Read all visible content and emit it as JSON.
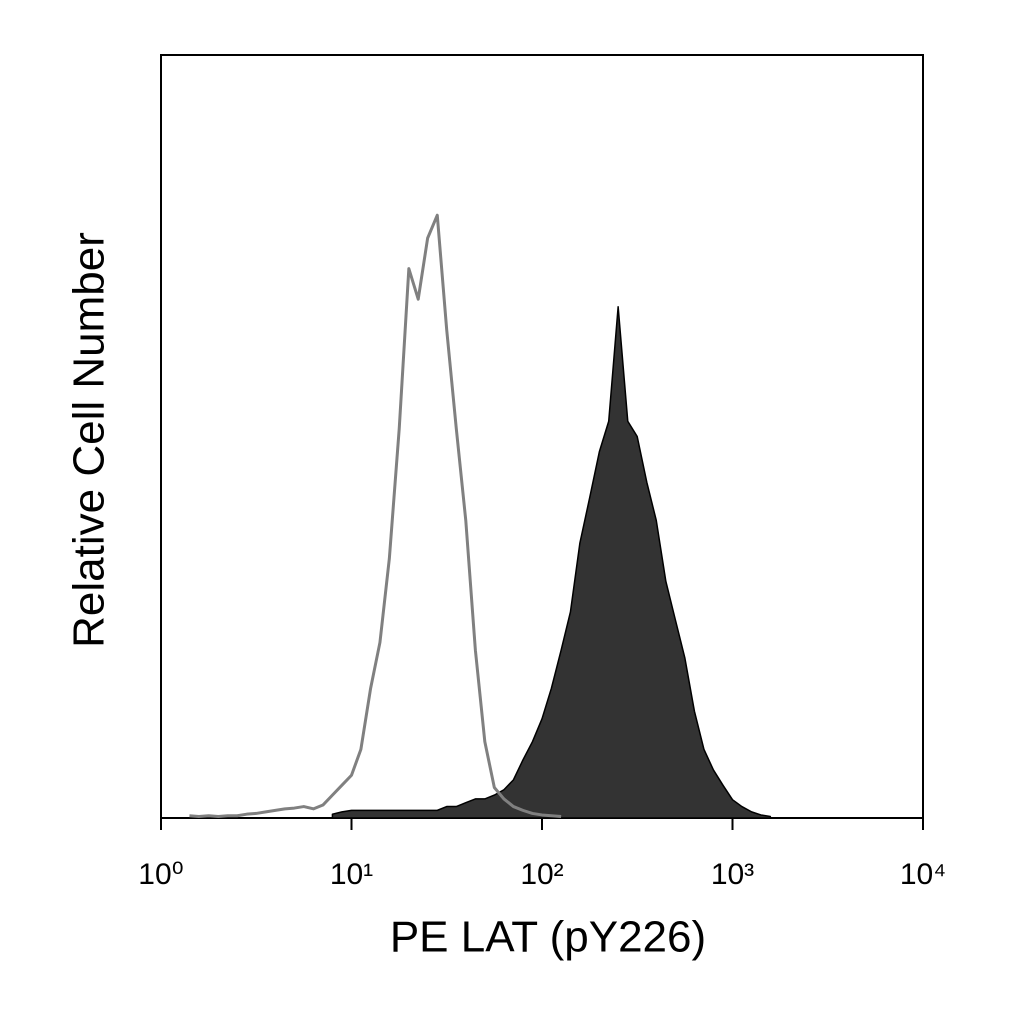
{
  "chart_data": {
    "type": "histogram-overlay",
    "x_label": "PE LAT (pY226)",
    "y_label": "Relative Cell Number",
    "xscale": "log",
    "xlim": [
      1,
      10000
    ],
    "ylim": [
      0,
      100
    ],
    "xticks": [
      {
        "value": 1,
        "label": "10⁰"
      },
      {
        "value": 10,
        "label": "10¹"
      },
      {
        "value": 100,
        "label": "10²"
      },
      {
        "value": 1000,
        "label": "10³"
      },
      {
        "value": 10000,
        "label": "10⁴"
      }
    ],
    "series": [
      {
        "color": "#333333",
        "edge_color": "#000000",
        "filled": true,
        "x": [
          7.94,
          8.91,
          10,
          11.2,
          12.6,
          14.1,
          15.8,
          17.8,
          20,
          22.4,
          25.1,
          28.2,
          31.6,
          35.5,
          39.8,
          44.7,
          50.1,
          56.2,
          63.1,
          70.8,
          79.4,
          89.1,
          100,
          112,
          126,
          141,
          158,
          178,
          200,
          224,
          251,
          282,
          316,
          355,
          398,
          447,
          501,
          562,
          631,
          708,
          794,
          891,
          1000,
          1120,
          1260,
          1410,
          1580
        ],
        "values": [
          0.5,
          0.8,
          1,
          1,
          1,
          1,
          1,
          1,
          1,
          1,
          1,
          1,
          1.5,
          1.5,
          2,
          2.5,
          2.5,
          3,
          3.7,
          5,
          7.6,
          10,
          13,
          17,
          22,
          27,
          36,
          42,
          48,
          52,
          67,
          52,
          50,
          44,
          39,
          31,
          26,
          21,
          14,
          9,
          6.3,
          4.3,
          2.4,
          1.5,
          0.8,
          0.4,
          0.2
        ]
      },
      {
        "color": "#808080",
        "filled": false,
        "x": [
          1.41,
          1.58,
          1.78,
          2.0,
          2.24,
          2.51,
          2.82,
          3.16,
          3.55,
          3.98,
          4.47,
          5.01,
          5.62,
          6.31,
          7.08,
          7.94,
          8.91,
          10,
          11.2,
          12.6,
          14.1,
          15.8,
          17.8,
          20,
          22.4,
          25.1,
          28.2,
          31.6,
          35.5,
          39.8,
          44.7,
          50.1,
          56.2,
          63.1,
          70.8,
          79.4,
          89.1,
          100,
          112,
          126
        ],
        "values": [
          0.3,
          0.2,
          0.3,
          0.2,
          0.3,
          0.3,
          0.5,
          0.6,
          0.8,
          1,
          1.2,
          1.3,
          1.5,
          1.2,
          1.7,
          3,
          4.3,
          5.6,
          9,
          17,
          23,
          34,
          51,
          72,
          68,
          76,
          79,
          64,
          51,
          39,
          22,
          10,
          4,
          2.5,
          1.5,
          1,
          0.6,
          0.4,
          0.3,
          0.2
        ]
      }
    ]
  }
}
